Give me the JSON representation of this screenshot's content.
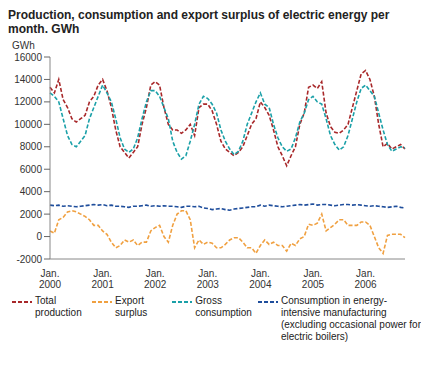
{
  "chart_data": {
    "type": "line",
    "title": "Production, consumption and export surplus of electric energy per month. GWh",
    "y_label": "GWh",
    "categories": [
      "Jan. 2000",
      null,
      null,
      null,
      null,
      null,
      null,
      null,
      null,
      null,
      null,
      null,
      "Jan. 2001",
      null,
      null,
      null,
      null,
      null,
      null,
      null,
      null,
      null,
      null,
      null,
      "Jan. 2002",
      null,
      null,
      null,
      null,
      null,
      null,
      null,
      null,
      null,
      null,
      null,
      "Jan. 2003",
      null,
      null,
      null,
      null,
      null,
      null,
      null,
      null,
      null,
      null,
      null,
      "Jan. 2004",
      null,
      null,
      null,
      null,
      null,
      null,
      null,
      null,
      null,
      null,
      null,
      "Jan. 2005",
      null,
      null,
      null,
      null,
      null,
      null,
      null,
      null,
      null,
      null,
      null,
      "Jan. 2006",
      null,
      null,
      null,
      null,
      null,
      null,
      null,
      null,
      null
    ],
    "series": [
      {
        "name": "Total production",
        "color": "#a8282a",
        "line_style": "dashed",
        "values": [
          13300,
          12800,
          14000,
          12200,
          11500,
          10500,
          10200,
          10500,
          10800,
          12000,
          12500,
          13500,
          14000,
          13000,
          11500,
          9500,
          8000,
          7500,
          7000,
          7500,
          8000,
          10000,
          11500,
          13500,
          13800,
          13500,
          11500,
          10000,
          9500,
          9500,
          9200,
          9500,
          10000,
          9000,
          11500,
          11800,
          11800,
          11200,
          10000,
          8500,
          7800,
          7500,
          7200,
          7500,
          8000,
          9000,
          10000,
          10500,
          12000,
          11500,
          10800,
          9500,
          8000,
          7200,
          6300,
          7200,
          8000,
          10000,
          11000,
          13300,
          13500,
          13200,
          13800,
          11000,
          9800,
          9300,
          9200,
          9500,
          10000,
          11500,
          13000,
          14500,
          14800,
          14000,
          12500,
          10000,
          8000,
          8300,
          7800,
          8000,
          8200,
          7800
        ]
      },
      {
        "name": "Export surplus",
        "color": "#f0a040",
        "line_style": "dashed",
        "values": [
          500,
          300,
          1500,
          1700,
          2200,
          2300,
          2200,
          2000,
          1800,
          1500,
          1000,
          1000,
          500,
          200,
          -500,
          -1000,
          -800,
          -300,
          -500,
          -300,
          -800,
          -500,
          -500,
          500,
          800,
          1000,
          0,
          -500,
          1000,
          2000,
          2300,
          2300,
          1500,
          -1000,
          -300,
          -700,
          -500,
          -600,
          -1000,
          -1000,
          -700,
          -300,
          -100,
          -100,
          -500,
          -1000,
          -1000,
          -1500,
          -800,
          -300,
          -700,
          -500,
          -800,
          -800,
          -1300,
          -600,
          -800,
          -200,
          0,
          1100,
          1000,
          1200,
          2000,
          500,
          800,
          1100,
          1500,
          1500,
          1000,
          1000,
          1000,
          1300,
          1300,
          1000,
          0,
          -1000,
          -1500,
          100,
          200,
          200,
          200,
          -100
        ]
      },
      {
        "name": "Gross consumption",
        "color": "#1aa0a8",
        "line_style": "dashed",
        "values": [
          12800,
          12500,
          12000,
          10500,
          9000,
          8200,
          8000,
          8500,
          9000,
          10500,
          11500,
          12500,
          13500,
          12800,
          12000,
          10500,
          8800,
          7800,
          7500,
          7800,
          8800,
          10500,
          12000,
          13000,
          13000,
          12500,
          11500,
          10500,
          8500,
          7500,
          6900,
          7200,
          8500,
          10000,
          11800,
          12500,
          12300,
          11800,
          11000,
          9500,
          8500,
          7800,
          7300,
          7600,
          8500,
          10000,
          11000,
          12000,
          12800,
          11800,
          11500,
          10000,
          8800,
          8000,
          7600,
          7800,
          8800,
          10200,
          11000,
          12200,
          12500,
          12000,
          11800,
          10500,
          9000,
          8200,
          7700,
          8000,
          9000,
          10500,
          12000,
          13200,
          13500,
          13000,
          12500,
          11000,
          9500,
          8200,
          7600,
          7800,
          8000,
          7900
        ]
      },
      {
        "name": "Consumption in energy-intensive manufacturing (excluding occasional power for electric boilers)",
        "color": "#1f4e9c",
        "line_style": "dashed",
        "values": [
          2800,
          2750,
          2800,
          2700,
          2750,
          2700,
          2650,
          2700,
          2750,
          2800,
          2850,
          2800,
          2850,
          2750,
          2800,
          2700,
          2700,
          2650,
          2600,
          2700,
          2700,
          2750,
          2800,
          2700,
          2750,
          2700,
          2750,
          2700,
          2700,
          2650,
          2600,
          2700,
          2700,
          2650,
          2700,
          2550,
          2500,
          2400,
          2450,
          2500,
          2400,
          2350,
          2450,
          2500,
          2550,
          2600,
          2650,
          2650,
          2800,
          2700,
          2800,
          2750,
          2700,
          2650,
          2700,
          2750,
          2800,
          2850,
          2800,
          2850,
          2900,
          2800,
          2850,
          2850,
          2800,
          2750,
          2800,
          2850,
          2850,
          2800,
          2850,
          2800,
          2750,
          2700,
          2750,
          2700,
          2650,
          2600,
          2650,
          2700,
          2600,
          2550
        ]
      }
    ],
    "ylim": [
      -2000,
      16000
    ],
    "yticks": [
      -2000,
      0,
      2000,
      4000,
      6000,
      8000,
      10000,
      12000,
      14000,
      16000
    ],
    "grid": false
  }
}
